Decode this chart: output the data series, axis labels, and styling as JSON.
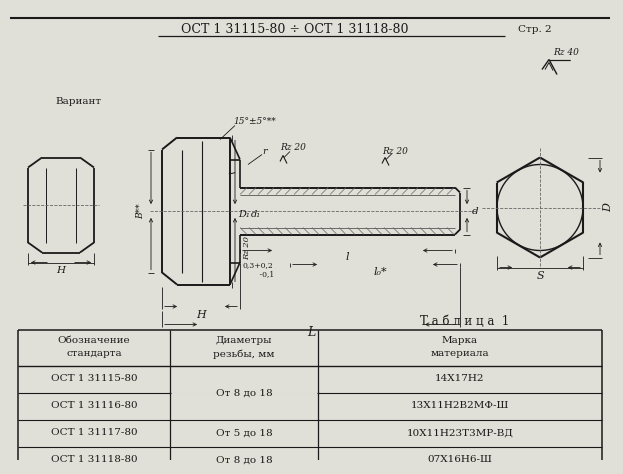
{
  "title": "ОСТ 1 31115-80 ÷ ОСТ 1 31118-80",
  "title_suffix": "Стр. 2",
  "bg_color": "#e0e0d8",
  "line_color": "#1a1a1a",
  "table_title": "Т а б л и ц а  1",
  "table_headers": [
    "Обозначение\nстандарта",
    "Диаметры\nрезьбы, мм",
    "Марка\nматериала"
  ],
  "table_rows": [
    [
      "ОСТ 1 31115-80",
      "От 8 до 18",
      "14Х17Н2"
    ],
    [
      "ОСТ 1 31116-80",
      "",
      "13Х11Н2В2МФ-Ш"
    ],
    [
      "ОСТ 1 31117-80",
      "От 5 до 18",
      "10Х11Н23Т3МР-ВД"
    ],
    [
      "ОСТ 1 31118-80",
      "От 8 до 18",
      "07Х16Н6-Ш"
    ]
  ],
  "merged_cell_text": "От 8 до 18",
  "variant_label": "Вариант"
}
